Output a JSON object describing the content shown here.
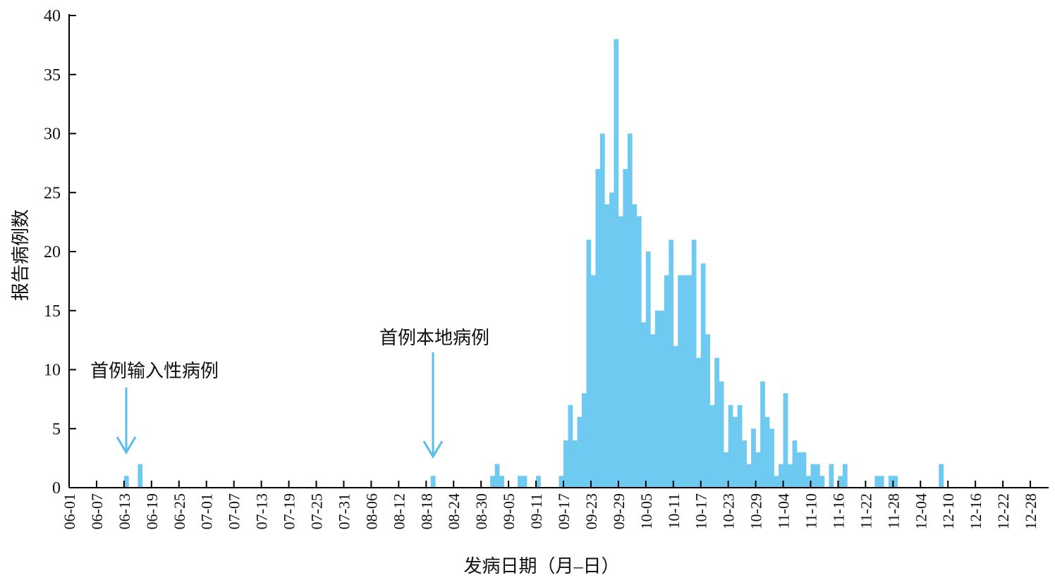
{
  "chart_data": {
    "type": "bar",
    "color": "#6ecaf0",
    "x_label": "发病日期（月–日）",
    "y_label": "报告病例数",
    "annotations": [
      "首例输入性病例",
      "首例本地病例"
    ],
    "ylim": [
      0,
      40
    ],
    "yticks": [
      0,
      5,
      10,
      15,
      20,
      25,
      30,
      35,
      40
    ],
    "grid": false,
    "categories": [
      "06-01",
      null,
      null,
      null,
      null,
      null,
      "06-07",
      null,
      null,
      null,
      null,
      null,
      "06-13",
      null,
      null,
      null,
      null,
      null,
      "06-19",
      null,
      null,
      null,
      null,
      null,
      "06-25",
      null,
      null,
      null,
      null,
      null,
      "07-01",
      null,
      null,
      null,
      null,
      null,
      "07-07",
      null,
      null,
      null,
      null,
      null,
      "07-13",
      null,
      null,
      null,
      null,
      null,
      "07-19",
      null,
      null,
      null,
      null,
      null,
      "07-25",
      null,
      null,
      null,
      null,
      null,
      "07-31",
      null,
      null,
      null,
      null,
      null,
      "08-06",
      null,
      null,
      null,
      null,
      null,
      "08-12",
      null,
      null,
      null,
      null,
      null,
      "08-18",
      null,
      null,
      null,
      null,
      null,
      "08-24",
      null,
      null,
      null,
      null,
      null,
      "08-30",
      null,
      null,
      null,
      null,
      null,
      "09-05",
      null,
      null,
      null,
      null,
      null,
      "09-11",
      null,
      null,
      null,
      null,
      null,
      "09-17",
      null,
      null,
      null,
      null,
      null,
      "09-23",
      null,
      null,
      null,
      null,
      null,
      "09-29",
      null,
      null,
      null,
      null,
      null,
      "10-05",
      null,
      null,
      null,
      null,
      null,
      "10-11",
      null,
      null,
      null,
      null,
      null,
      "10-17",
      null,
      null,
      null,
      null,
      null,
      "10-23",
      null,
      null,
      null,
      null,
      null,
      "10-29",
      null,
      null,
      null,
      null,
      null,
      "11-04",
      null,
      null,
      null,
      null,
      null,
      "11-10",
      null,
      null,
      null,
      null,
      null,
      "11-16",
      null,
      null,
      null,
      null,
      null,
      "11-22",
      null,
      null,
      null,
      null,
      null,
      "11-28",
      null,
      null,
      null,
      null,
      null,
      "12-04",
      null,
      null,
      null,
      null,
      null,
      "12-10",
      null,
      null,
      null,
      null,
      null,
      "12-16",
      null,
      null,
      null,
      null,
      null,
      "12-22",
      null,
      null,
      null,
      null,
      null,
      "12-28",
      null,
      null,
      null
    ],
    "values": [
      0,
      0,
      0,
      0,
      0,
      0,
      0,
      0,
      0,
      0,
      0,
      0,
      1,
      0,
      0,
      2,
      0,
      0,
      0,
      0,
      0,
      0,
      0,
      0,
      0,
      0,
      0,
      0,
      0,
      0,
      0,
      0,
      0,
      0,
      0,
      0,
      0,
      0,
      0,
      0,
      0,
      0,
      0,
      0,
      0,
      0,
      0,
      0,
      0,
      0,
      0,
      0,
      0,
      0,
      0,
      0,
      0,
      0,
      0,
      0,
      0,
      0,
      0,
      0,
      0,
      0,
      0,
      0,
      0,
      0,
      0,
      0,
      0,
      0,
      0,
      0,
      0,
      0,
      0,
      1,
      0,
      0,
      0,
      0,
      0,
      0,
      0,
      0,
      0,
      0,
      0,
      0,
      1,
      2,
      1,
      0,
      0,
      0,
      1,
      1,
      0,
      0,
      1,
      0,
      0,
      0,
      0,
      1,
      4,
      7,
      4,
      6,
      8,
      21,
      18,
      27,
      30,
      24,
      25,
      38,
      23,
      27,
      30,
      24,
      23,
      14,
      20,
      13,
      15,
      15,
      18,
      21,
      12,
      18,
      18,
      18,
      21,
      11,
      19,
      13,
      7,
      11,
      9,
      3,
      7,
      6,
      7,
      4,
      2,
      5,
      3,
      9,
      6,
      5,
      1,
      2,
      8,
      2,
      4,
      3,
      3,
      1,
      2,
      2,
      1,
      0,
      2,
      0,
      1,
      2,
      0,
      0,
      0,
      0,
      0,
      0,
      1,
      1,
      0,
      1,
      1,
      0,
      0,
      0,
      0,
      0,
      0,
      0,
      0,
      0,
      2,
      0,
      0,
      0,
      0,
      0,
      0,
      0,
      0,
      0,
      0,
      0,
      0,
      0,
      0,
      0,
      0,
      0,
      0,
      0,
      0,
      0,
      0,
      0
    ]
  }
}
